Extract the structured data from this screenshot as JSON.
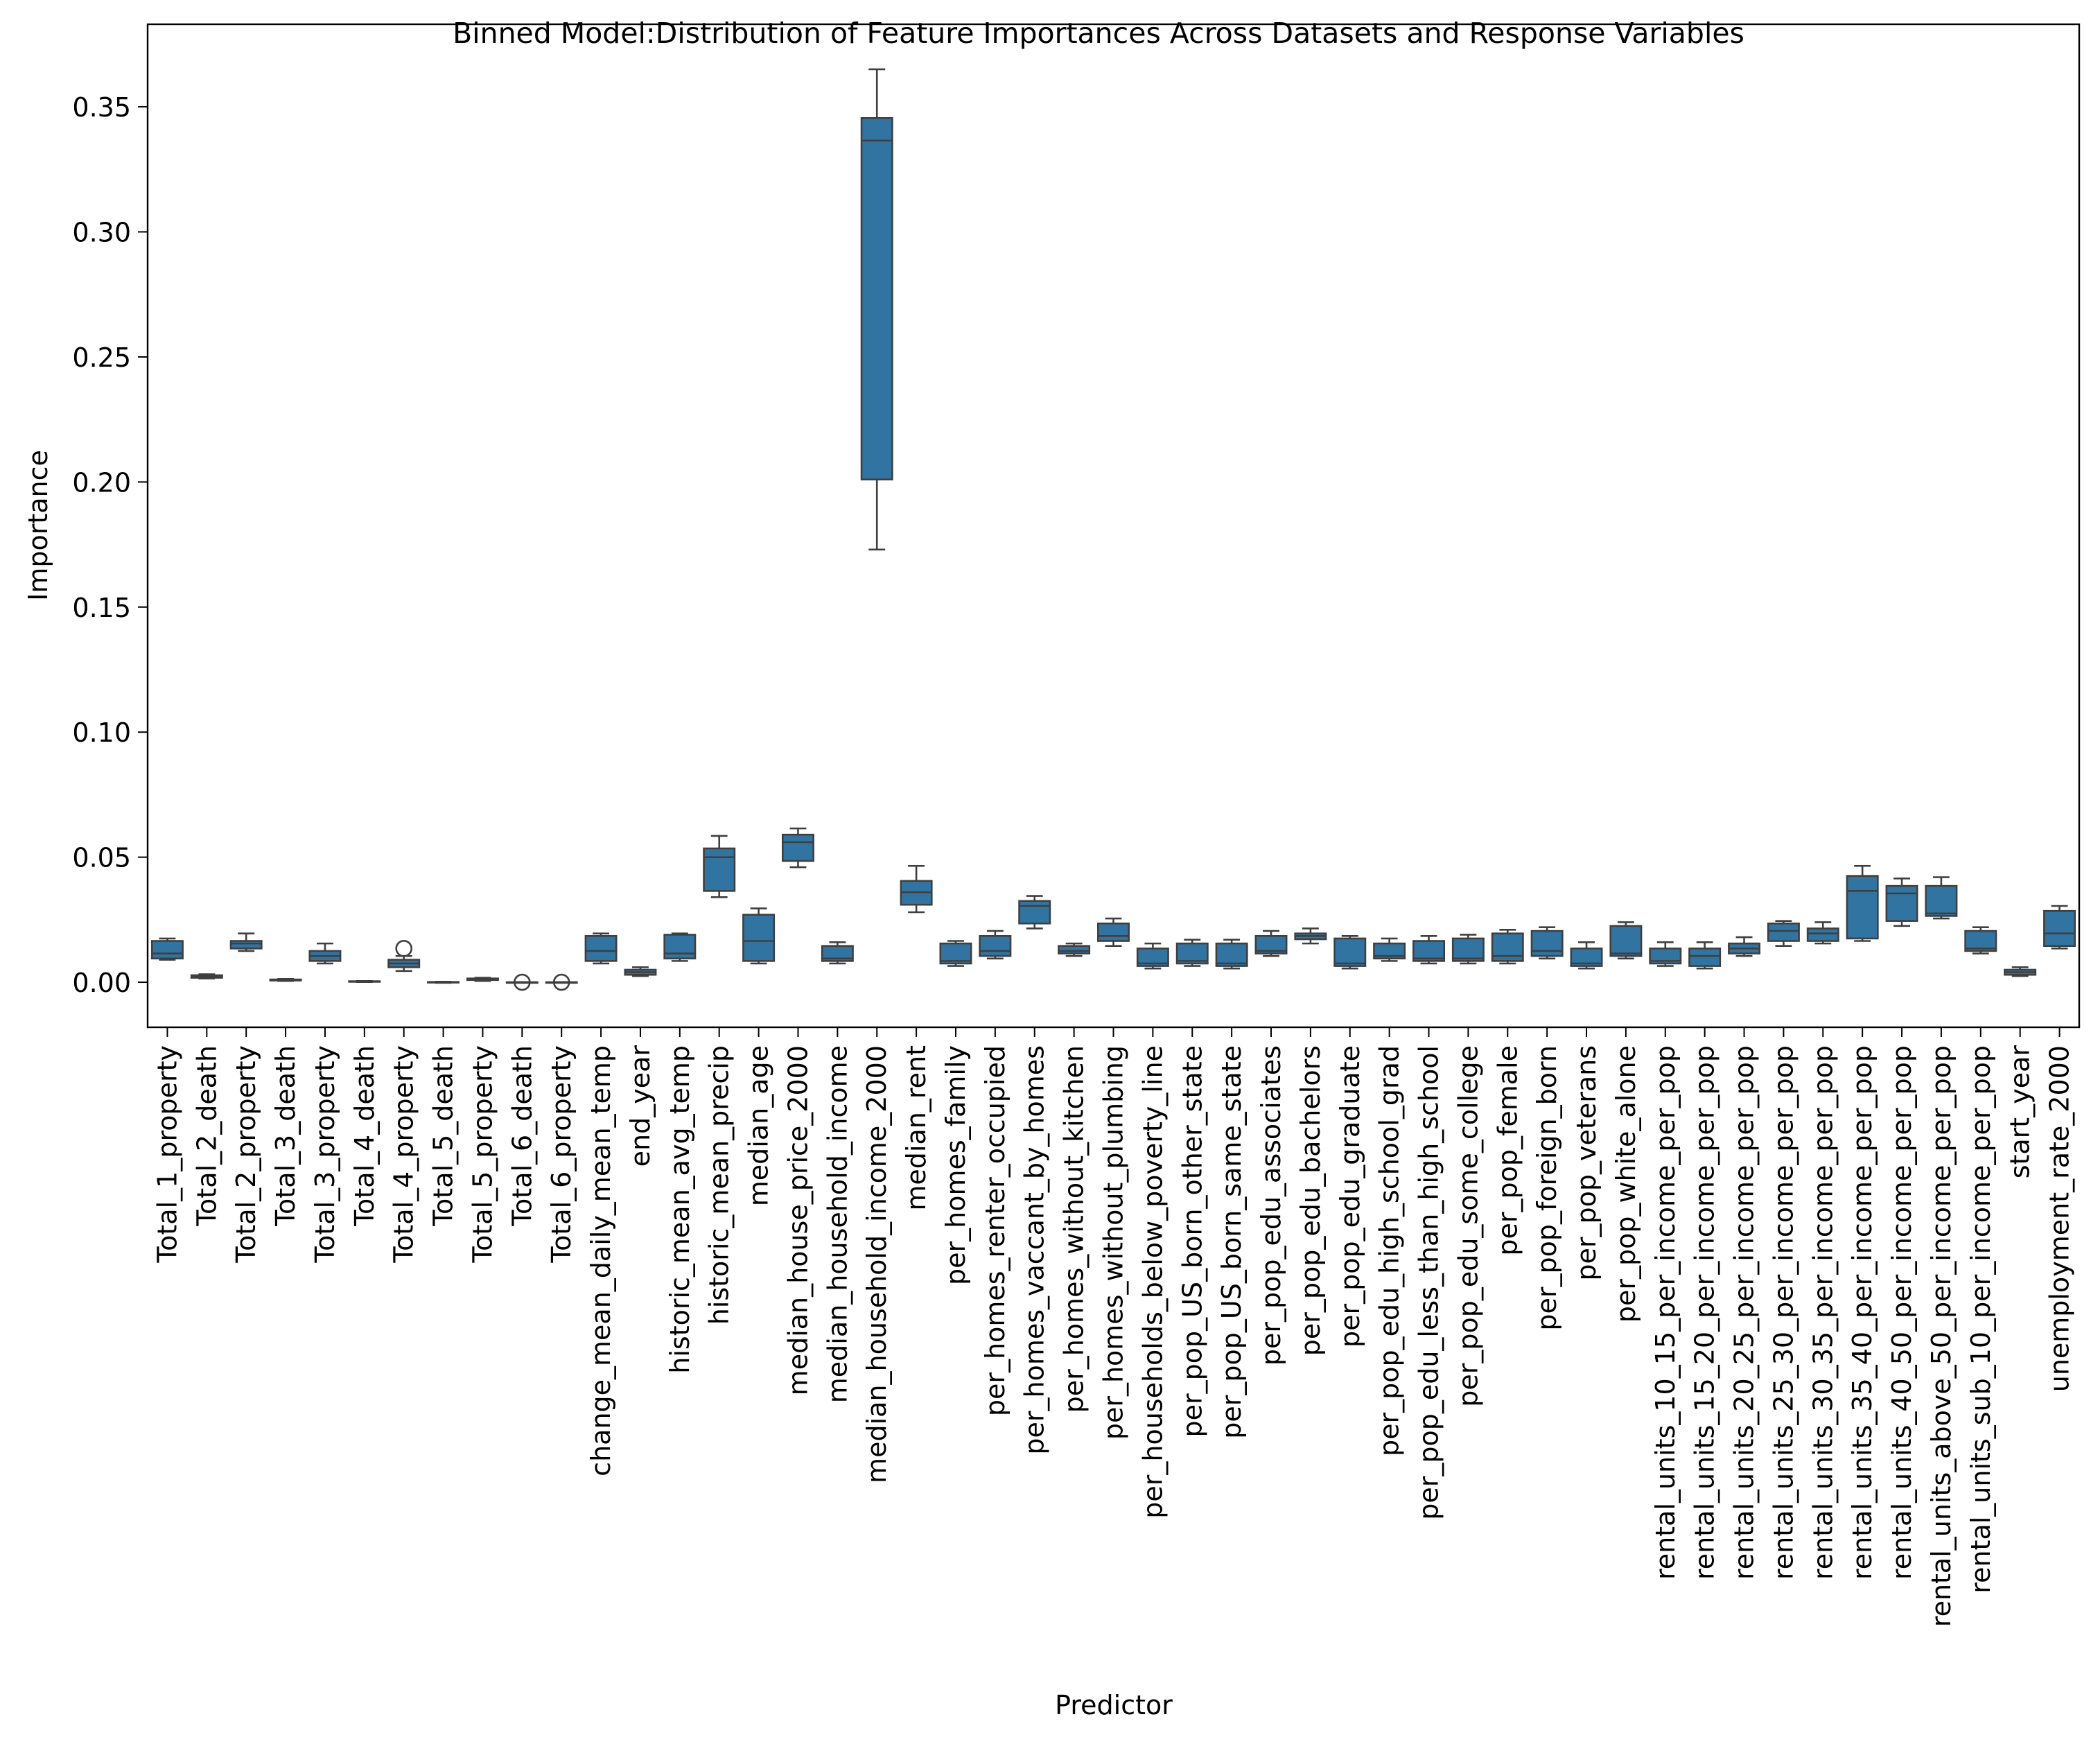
{
  "chart_data": {
    "type": "box",
    "title": "Binned Model:Distribution of Feature Importances Across Datasets and Response Variables",
    "xlabel": "Predictor",
    "ylabel": "Importance",
    "ylim": [
      -0.018,
      0.383
    ],
    "yticks": [
      0.0,
      0.05,
      0.1,
      0.15,
      0.2,
      0.25,
      0.3,
      0.35
    ],
    "ytick_labels": [
      "0.00",
      "0.05",
      "0.10",
      "0.15",
      "0.20",
      "0.25",
      "0.30",
      "0.35"
    ],
    "grid": false,
    "box_color": "#3274a1",
    "line_color": "#3f3f3f",
    "boxes": [
      {
        "label": "Total_1_property",
        "whisker_low": 0.009,
        "q1": 0.0095,
        "median": 0.0115,
        "q3": 0.0165,
        "whisker_high": 0.0175,
        "outliers": []
      },
      {
        "label": "Total_2_death",
        "whisker_low": 0.0015,
        "q1": 0.0018,
        "median": 0.0022,
        "q3": 0.0028,
        "whisker_high": 0.0032,
        "outliers": []
      },
      {
        "label": "Total_2_property",
        "whisker_low": 0.0125,
        "q1": 0.0135,
        "median": 0.0155,
        "q3": 0.0165,
        "whisker_high": 0.0195,
        "outliers": []
      },
      {
        "label": "Total_3_death",
        "whisker_low": 0.0005,
        "q1": 0.0007,
        "median": 0.0009,
        "q3": 0.0011,
        "whisker_high": 0.0013,
        "outliers": []
      },
      {
        "label": "Total_3_property",
        "whisker_low": 0.0075,
        "q1": 0.0085,
        "median": 0.0105,
        "q3": 0.0125,
        "whisker_high": 0.0155,
        "outliers": []
      },
      {
        "label": "Total_4_death",
        "whisker_low": 0.0001,
        "q1": 0.0002,
        "median": 0.0003,
        "q3": 0.0004,
        "whisker_high": 0.0005,
        "outliers": []
      },
      {
        "label": "Total_4_property",
        "whisker_low": 0.0045,
        "q1": 0.006,
        "median": 0.0075,
        "q3": 0.009,
        "whisker_high": 0.0105,
        "outliers": [
          0.0135
        ]
      },
      {
        "label": "Total_5_death",
        "whisker_low": -0.0002,
        "q1": -0.0001,
        "median": 0.0,
        "q3": 0.0001,
        "whisker_high": 0.0002,
        "outliers": []
      },
      {
        "label": "Total_5_property",
        "whisker_low": 0.0005,
        "q1": 0.0009,
        "median": 0.0012,
        "q3": 0.0015,
        "whisker_high": 0.0018,
        "outliers": []
      },
      {
        "label": "Total_6_death",
        "whisker_low": 0.0,
        "q1": 0.0,
        "median": 0.0,
        "q3": 0.0,
        "whisker_high": 0.0,
        "outliers": [
          0.0
        ]
      },
      {
        "label": "Total_6_property",
        "whisker_low": 0.0,
        "q1": 0.0,
        "median": 0.0,
        "q3": 0.0,
        "whisker_high": 0.0,
        "outliers": [
          0.0
        ]
      },
      {
        "label": "change_mean_daily_mean_temp",
        "whisker_low": 0.0075,
        "q1": 0.0085,
        "median": 0.0125,
        "q3": 0.0185,
        "whisker_high": 0.0195,
        "outliers": []
      },
      {
        "label": "end_year",
        "whisker_low": 0.0025,
        "q1": 0.003,
        "median": 0.004,
        "q3": 0.005,
        "whisker_high": 0.006,
        "outliers": []
      },
      {
        "label": "historic_mean_avg_temp",
        "whisker_low": 0.0085,
        "q1": 0.0095,
        "median": 0.0115,
        "q3": 0.019,
        "whisker_high": 0.0195,
        "outliers": []
      },
      {
        "label": "historic_mean_precip",
        "whisker_low": 0.034,
        "q1": 0.0365,
        "median": 0.05,
        "q3": 0.0535,
        "whisker_high": 0.0585,
        "outliers": []
      },
      {
        "label": "median_age",
        "whisker_low": 0.0075,
        "q1": 0.0085,
        "median": 0.0165,
        "q3": 0.027,
        "whisker_high": 0.0295,
        "outliers": []
      },
      {
        "label": "median_house_price_2000",
        "whisker_low": 0.046,
        "q1": 0.0485,
        "median": 0.056,
        "q3": 0.059,
        "whisker_high": 0.0615,
        "outliers": []
      },
      {
        "label": "median_household_income",
        "whisker_low": 0.0075,
        "q1": 0.0085,
        "median": 0.0095,
        "q3": 0.0145,
        "whisker_high": 0.016,
        "outliers": []
      },
      {
        "label": "median_household_income_2000",
        "whisker_low": 0.173,
        "q1": 0.201,
        "median": 0.3365,
        "q3": 0.3455,
        "whisker_high": 0.365,
        "outliers": []
      },
      {
        "label": "median_rent",
        "whisker_low": 0.028,
        "q1": 0.031,
        "median": 0.036,
        "q3": 0.0405,
        "whisker_high": 0.0465,
        "outliers": []
      },
      {
        "label": "per_homes_family",
        "whisker_low": 0.0065,
        "q1": 0.0075,
        "median": 0.0085,
        "q3": 0.0155,
        "whisker_high": 0.0165,
        "outliers": []
      },
      {
        "label": "per_homes_renter_occupied",
        "whisker_low": 0.0095,
        "q1": 0.0105,
        "median": 0.0125,
        "q3": 0.0185,
        "whisker_high": 0.0205,
        "outliers": []
      },
      {
        "label": "per_homes_vaccant_by_homes",
        "whisker_low": 0.0215,
        "q1": 0.0235,
        "median": 0.0305,
        "q3": 0.0325,
        "whisker_high": 0.0345,
        "outliers": []
      },
      {
        "label": "per_homes_without_kitchen",
        "whisker_low": 0.0105,
        "q1": 0.0115,
        "median": 0.0125,
        "q3": 0.0145,
        "whisker_high": 0.0155,
        "outliers": []
      },
      {
        "label": "per_homes_without_plumbing",
        "whisker_low": 0.0145,
        "q1": 0.0165,
        "median": 0.0185,
        "q3": 0.0235,
        "whisker_high": 0.0255,
        "outliers": []
      },
      {
        "label": "per_households_below_poverty_line",
        "whisker_low": 0.0055,
        "q1": 0.0065,
        "median": 0.0075,
        "q3": 0.0135,
        "whisker_high": 0.0155,
        "outliers": []
      },
      {
        "label": "per_pop_US_born_other_state",
        "whisker_low": 0.0065,
        "q1": 0.0075,
        "median": 0.0085,
        "q3": 0.0155,
        "whisker_high": 0.017,
        "outliers": []
      },
      {
        "label": "per_pop_US_born_same_state",
        "whisker_low": 0.0055,
        "q1": 0.0065,
        "median": 0.0075,
        "q3": 0.0155,
        "whisker_high": 0.017,
        "outliers": []
      },
      {
        "label": "per_pop_edu_associates",
        "whisker_low": 0.0105,
        "q1": 0.0115,
        "median": 0.0125,
        "q3": 0.0185,
        "whisker_high": 0.0205,
        "outliers": []
      },
      {
        "label": "per_pop_edu_bachelors",
        "whisker_low": 0.0155,
        "q1": 0.0172,
        "median": 0.0185,
        "q3": 0.0195,
        "whisker_high": 0.0215,
        "outliers": []
      },
      {
        "label": "per_pop_edu_graduate",
        "whisker_low": 0.0055,
        "q1": 0.0065,
        "median": 0.0075,
        "q3": 0.0175,
        "whisker_high": 0.0185,
        "outliers": []
      },
      {
        "label": "per_pop_edu_high_school_grad",
        "whisker_low": 0.0085,
        "q1": 0.0095,
        "median": 0.0105,
        "q3": 0.0155,
        "whisker_high": 0.0175,
        "outliers": []
      },
      {
        "label": "per_pop_edu_less_than_high_school",
        "whisker_low": 0.0075,
        "q1": 0.0085,
        "median": 0.0095,
        "q3": 0.0165,
        "whisker_high": 0.0185,
        "outliers": []
      },
      {
        "label": "per_pop_edu_some_college",
        "whisker_low": 0.0075,
        "q1": 0.0085,
        "median": 0.0095,
        "q3": 0.0175,
        "whisker_high": 0.019,
        "outliers": []
      },
      {
        "label": "per_pop_female",
        "whisker_low": 0.0075,
        "q1": 0.0085,
        "median": 0.0105,
        "q3": 0.0195,
        "whisker_high": 0.021,
        "outliers": []
      },
      {
        "label": "per_pop_foreign_born",
        "whisker_low": 0.0095,
        "q1": 0.0105,
        "median": 0.0125,
        "q3": 0.0205,
        "whisker_high": 0.022,
        "outliers": []
      },
      {
        "label": "per_pop_veterans",
        "whisker_low": 0.0055,
        "q1": 0.0065,
        "median": 0.0075,
        "q3": 0.0135,
        "whisker_high": 0.016,
        "outliers": []
      },
      {
        "label": "per_pop_white_alone",
        "whisker_low": 0.0095,
        "q1": 0.0105,
        "median": 0.0115,
        "q3": 0.0225,
        "whisker_high": 0.024,
        "outliers": []
      },
      {
        "label": "rental_units_10_15_per_income_per_pop",
        "whisker_low": 0.0065,
        "q1": 0.0075,
        "median": 0.0085,
        "q3": 0.0135,
        "whisker_high": 0.016,
        "outliers": []
      },
      {
        "label": "rental_units_15_20_per_income_per_pop",
        "whisker_low": 0.0055,
        "q1": 0.0065,
        "median": 0.0105,
        "q3": 0.0135,
        "whisker_high": 0.016,
        "outliers": []
      },
      {
        "label": "rental_units_20_25_per_income_per_pop",
        "whisker_low": 0.0105,
        "q1": 0.0115,
        "median": 0.0135,
        "q3": 0.0155,
        "whisker_high": 0.018,
        "outliers": []
      },
      {
        "label": "rental_units_25_30_per_income_per_pop",
        "whisker_low": 0.0145,
        "q1": 0.0165,
        "median": 0.0205,
        "q3": 0.0235,
        "whisker_high": 0.0245,
        "outliers": []
      },
      {
        "label": "rental_units_30_35_per_income_per_pop",
        "whisker_low": 0.0155,
        "q1": 0.0165,
        "median": 0.0195,
        "q3": 0.0215,
        "whisker_high": 0.024,
        "outliers": []
      },
      {
        "label": "rental_units_35_40_per_income_per_pop",
        "whisker_low": 0.0165,
        "q1": 0.0175,
        "median": 0.0365,
        "q3": 0.0425,
        "whisker_high": 0.0465,
        "outliers": []
      },
      {
        "label": "rental_units_40_50_per_income_per_pop",
        "whisker_low": 0.0225,
        "q1": 0.0245,
        "median": 0.0355,
        "q3": 0.0385,
        "whisker_high": 0.0415,
        "outliers": []
      },
      {
        "label": "rental_units_above_50_per_income_per_pop",
        "whisker_low": 0.0255,
        "q1": 0.0265,
        "median": 0.0275,
        "q3": 0.0385,
        "whisker_high": 0.042,
        "outliers": []
      },
      {
        "label": "rental_units_sub_10_per_income_per_pop",
        "whisker_low": 0.0115,
        "q1": 0.0125,
        "median": 0.0135,
        "q3": 0.0205,
        "whisker_high": 0.022,
        "outliers": []
      },
      {
        "label": "start_year",
        "whisker_low": 0.0025,
        "q1": 0.003,
        "median": 0.004,
        "q3": 0.005,
        "whisker_high": 0.006,
        "outliers": []
      },
      {
        "label": "unemployment_rate_2000",
        "whisker_low": 0.0135,
        "q1": 0.0145,
        "median": 0.0195,
        "q3": 0.0285,
        "whisker_high": 0.0305,
        "outliers": []
      }
    ]
  }
}
